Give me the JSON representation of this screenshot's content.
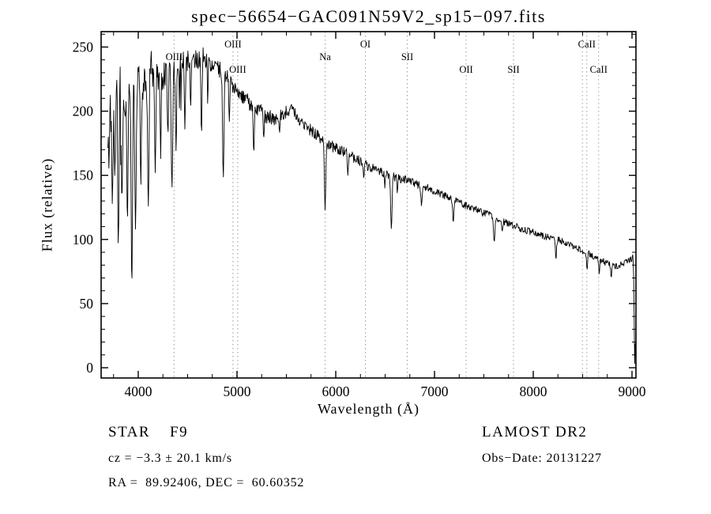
{
  "annotations": {
    "object_type": "STAR    F9",
    "survey": "LAMOST DR2",
    "cz": "cz = −3.3 ± 20.1 km/s",
    "obs_date": "Obs−Date: 20131227",
    "ra_dec": "RA =  89.92406, DEC =  60.60352"
  },
  "chart_data": {
    "type": "line",
    "title": "spec−56654−GAC091N59V2_sp15−097.fits",
    "xlabel": "Wavelength (Å)",
    "ylabel": "Flux (relative)",
    "xlim": [
      3624,
      9040
    ],
    "ylim": [
      -8,
      262
    ],
    "xticks": [
      4000,
      5000,
      6000,
      7000,
      8000,
      9000
    ],
    "yticks": [
      0,
      50,
      100,
      150,
      200,
      250
    ],
    "x_minor_interval": 250,
    "y_minor_interval": 10,
    "grid": false,
    "line_color": "#000000",
    "marker_line_color": "#9a9a9a",
    "data_start": 3692,
    "data_end": 9032,
    "continuum": [
      [
        3690,
        175
      ],
      [
        3715,
        200
      ],
      [
        3740,
        195
      ],
      [
        3770,
        215
      ],
      [
        3800,
        205
      ],
      [
        3830,
        220
      ],
      [
        3860,
        210
      ],
      [
        3900,
        220
      ],
      [
        3940,
        228
      ],
      [
        3980,
        222
      ],
      [
        4020,
        226
      ],
      [
        4060,
        222
      ],
      [
        4100,
        230
      ],
      [
        4140,
        234
      ],
      [
        4180,
        228
      ],
      [
        4220,
        231
      ],
      [
        4260,
        227
      ],
      [
        4300,
        229
      ],
      [
        4340,
        228
      ],
      [
        4380,
        232
      ],
      [
        4420,
        234
      ],
      [
        4460,
        238
      ],
      [
        4500,
        240
      ],
      [
        4540,
        236
      ],
      [
        4580,
        239
      ],
      [
        4620,
        241
      ],
      [
        4660,
        242
      ],
      [
        4700,
        240
      ],
      [
        4740,
        238
      ],
      [
        4780,
        236
      ],
      [
        4820,
        233
      ],
      [
        4860,
        230
      ],
      [
        4900,
        227
      ],
      [
        4940,
        222
      ],
      [
        4980,
        218
      ],
      [
        5030,
        213
      ],
      [
        5080,
        209
      ],
      [
        5130,
        206
      ],
      [
        5180,
        203
      ],
      [
        5230,
        200
      ],
      [
        5280,
        197
      ],
      [
        5330,
        196
      ],
      [
        5380,
        194
      ],
      [
        5430,
        196
      ],
      [
        5480,
        198
      ],
      [
        5530,
        201
      ],
      [
        5580,
        200
      ],
      [
        5630,
        193
      ],
      [
        5680,
        189
      ],
      [
        5730,
        186
      ],
      [
        5780,
        183
      ],
      [
        5830,
        180
      ],
      [
        5880,
        177
      ],
      [
        5930,
        174
      ],
      [
        5980,
        172
      ],
      [
        6030,
        170
      ],
      [
        6080,
        168
      ],
      [
        6130,
        166
      ],
      [
        6180,
        164
      ],
      [
        6230,
        162
      ],
      [
        6280,
        159
      ],
      [
        6330,
        157
      ],
      [
        6380,
        155
      ],
      [
        6430,
        153
      ],
      [
        6480,
        152
      ],
      [
        6530,
        151
      ],
      [
        6580,
        149
      ],
      [
        6630,
        148
      ],
      [
        6680,
        147
      ],
      [
        6730,
        146
      ],
      [
        6780,
        144
      ],
      [
        6830,
        143
      ],
      [
        6880,
        141
      ],
      [
        6930,
        140
      ],
      [
        6980,
        138
      ],
      [
        7030,
        137
      ],
      [
        7080,
        135
      ],
      [
        7130,
        133
      ],
      [
        7180,
        131
      ],
      [
        7230,
        130
      ],
      [
        7280,
        128
      ],
      [
        7330,
        126
      ],
      [
        7380,
        125
      ],
      [
        7430,
        123
      ],
      [
        7480,
        121
      ],
      [
        7530,
        120
      ],
      [
        7580,
        118
      ],
      [
        7630,
        116
      ],
      [
        7680,
        114
      ],
      [
        7730,
        113
      ],
      [
        7780,
        111
      ],
      [
        7830,
        110
      ],
      [
        7880,
        108
      ],
      [
        7930,
        107
      ],
      [
        7980,
        106
      ],
      [
        8030,
        105
      ],
      [
        8080,
        103
      ],
      [
        8130,
        102
      ],
      [
        8180,
        101
      ],
      [
        8230,
        100
      ],
      [
        8280,
        99
      ],
      [
        8330,
        97
      ],
      [
        8380,
        96
      ],
      [
        8430,
        94
      ],
      [
        8480,
        92
      ],
      [
        8530,
        90
      ],
      [
        8580,
        88
      ],
      [
        8630,
        86
      ],
      [
        8680,
        84
      ],
      [
        8730,
        82
      ],
      [
        8780,
        80
      ],
      [
        8830,
        79
      ],
      [
        8880,
        80
      ],
      [
        8930,
        82
      ],
      [
        8980,
        84
      ],
      [
        9010,
        86
      ],
      [
        9032,
        84
      ]
    ],
    "noise": [
      [
        3690,
        32
      ],
      [
        3780,
        28
      ],
      [
        3870,
        24
      ],
      [
        3960,
        20
      ],
      [
        4050,
        17
      ],
      [
        4150,
        14
      ],
      [
        4250,
        12
      ],
      [
        4400,
        10
      ],
      [
        4600,
        8
      ],
      [
        4800,
        7
      ],
      [
        5000,
        6.5
      ],
      [
        5300,
        6
      ],
      [
        5600,
        5
      ],
      [
        5900,
        4.5
      ],
      [
        6200,
        4
      ],
      [
        6600,
        3.5
      ],
      [
        7000,
        3
      ],
      [
        7500,
        2.8
      ],
      [
        8000,
        2.6
      ],
      [
        8500,
        2.6
      ],
      [
        9032,
        2.5
      ]
    ],
    "dips": [
      [
        3737,
        128,
        6
      ],
      [
        3762,
        150,
        5
      ],
      [
        3798,
        96,
        6
      ],
      [
        3835,
        132,
        6
      ],
      [
        3890,
        112,
        6
      ],
      [
        3935,
        64,
        7
      ],
      [
        3972,
        108,
        7
      ],
      [
        4026,
        142,
        6
      ],
      [
        4102,
        126,
        7
      ],
      [
        4172,
        152,
        6
      ],
      [
        4227,
        163,
        5
      ],
      [
        4300,
        180,
        5
      ],
      [
        4341,
        140,
        7
      ],
      [
        4383,
        168,
        5
      ],
      [
        4472,
        186,
        5
      ],
      [
        4530,
        200,
        4
      ],
      [
        4640,
        180,
        5
      ],
      [
        4703,
        205,
        4
      ],
      [
        4861,
        148,
        7
      ],
      [
        4922,
        192,
        5
      ],
      [
        5170,
        168,
        6
      ],
      [
        5270,
        178,
        5
      ],
      [
        5430,
        182,
        4
      ],
      [
        5892,
        123,
        7
      ],
      [
        6122,
        150,
        5
      ],
      [
        6283,
        148,
        5
      ],
      [
        6497,
        140,
        4
      ],
      [
        6563,
        108,
        7
      ],
      [
        6623,
        136,
        4
      ],
      [
        6868,
        126,
        6
      ],
      [
        7190,
        113,
        6
      ],
      [
        7605,
        98,
        7
      ],
      [
        7685,
        106,
        5
      ],
      [
        8230,
        84,
        5
      ],
      [
        8545,
        76,
        5
      ],
      [
        8668,
        73,
        5
      ],
      [
        8790,
        70,
        5
      ],
      [
        9028,
        2,
        6
      ]
    ],
    "spectral_lines": [
      {
        "label": "OIII",
        "wavelength": 4363,
        "row": 1
      },
      {
        "label": "OIII",
        "wavelength": 4959,
        "row": 0
      },
      {
        "label": "OIII",
        "wavelength": 5007,
        "row": 2
      },
      {
        "label": "Na",
        "wavelength": 5892,
        "row": 1
      },
      {
        "label": "OI",
        "wavelength": 6300,
        "row": 0
      },
      {
        "label": "SII",
        "wavelength": 6724,
        "row": 1
      },
      {
        "label": "OII",
        "wavelength": 7320,
        "row": 2
      },
      {
        "label": "SII",
        "wavelength": 7800,
        "row": 2
      },
      {
        "label": "",
        "wavelength": 8498,
        "row": 0
      },
      {
        "label": "CaII",
        "wavelength": 8542,
        "row": 0
      },
      {
        "label": "CaII",
        "wavelength": 8662,
        "row": 2
      }
    ]
  }
}
